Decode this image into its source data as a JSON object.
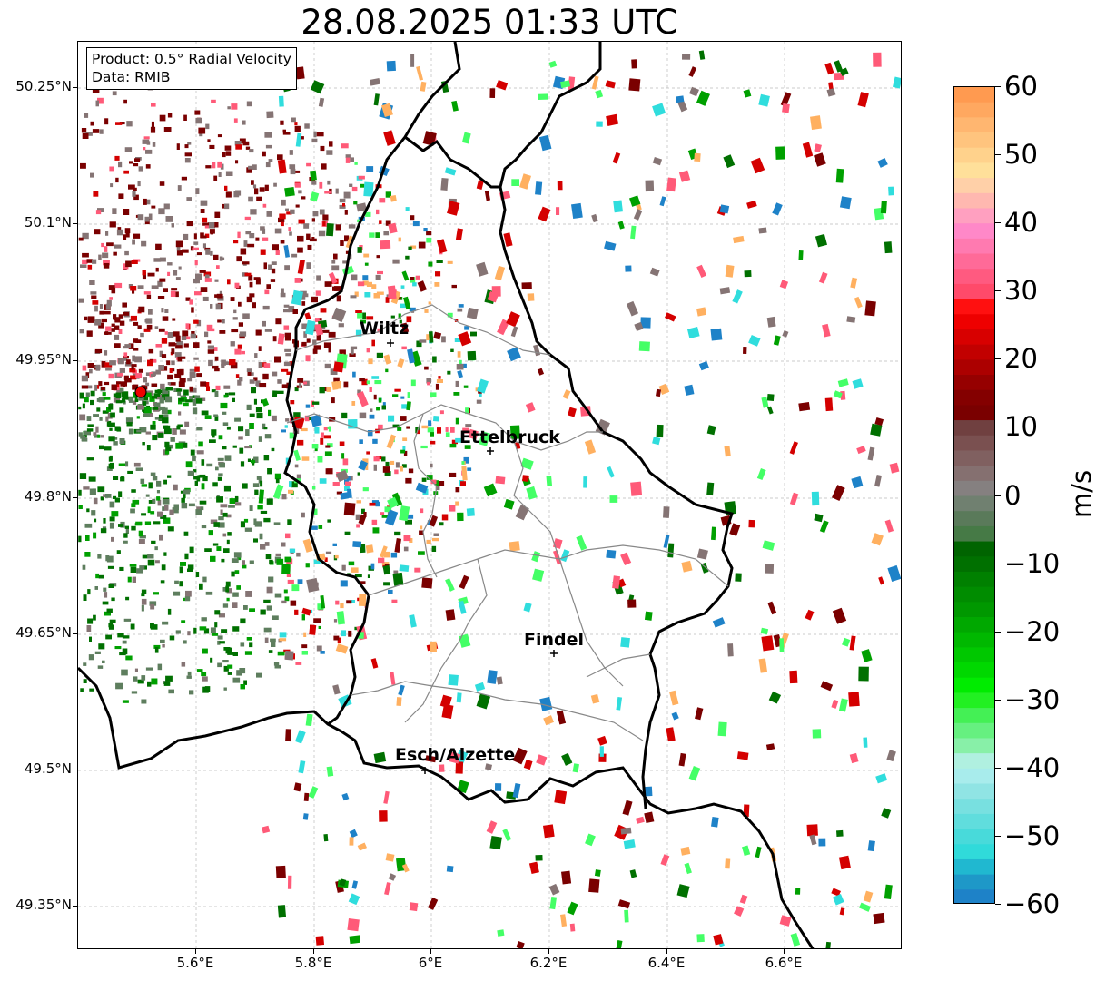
{
  "title": "28.08.2025 01:33 UTC",
  "info": {
    "product": "Product: 0.5° Radial Velocity",
    "data": "Data: RMIB"
  },
  "lat_ticks": [
    "50.25°N",
    "50.1°N",
    "49.95°N",
    "49.8°N",
    "49.65°N",
    "49.5°N",
    "49.35°N"
  ],
  "lon_ticks": [
    "5.6°E",
    "5.8°E",
    "6°E",
    "6.2°E",
    "6.4°E",
    "6.6°E"
  ],
  "cities": [
    {
      "name": "Wiltz"
    },
    {
      "name": "Ettelbruck"
    },
    {
      "name": "Findel"
    },
    {
      "name": "Esch/Alzette"
    }
  ],
  "colorbar": {
    "unit": "m/s",
    "ticks": [
      "60",
      "50",
      "40",
      "30",
      "20",
      "10",
      "0",
      "−10",
      "−20",
      "−30",
      "−40",
      "−50",
      "−60"
    ],
    "range": [
      -60,
      60
    ]
  },
  "colors": {
    "strong_outbound": "#7a0000",
    "outbound": "#d40000",
    "pink": "#ff5a78",
    "orange": "#ffb060",
    "zero_gray": "#857474",
    "inbound": "#00a000",
    "strong_inbound": "#007000",
    "light_green": "#44ff66",
    "cyan": "#30dddd",
    "blue": "#1e82c8",
    "radar_site": "#ee0000"
  }
}
